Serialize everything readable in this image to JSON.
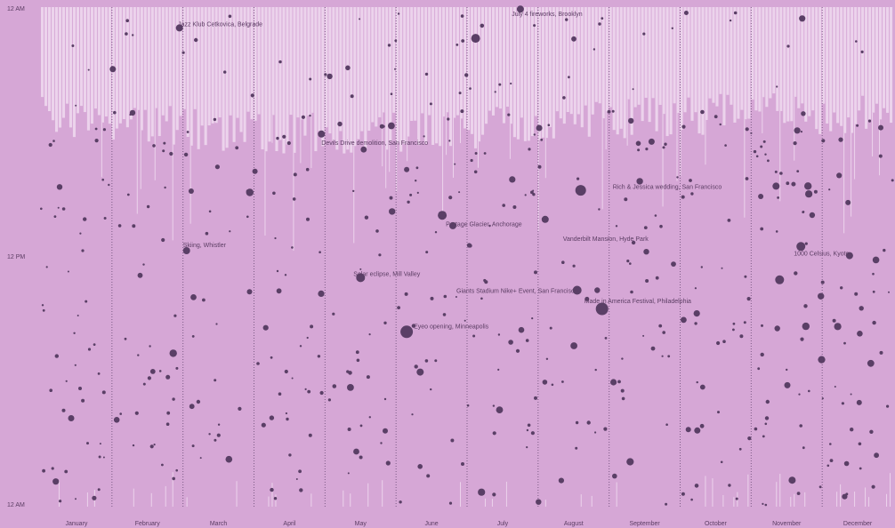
{
  "chart_data": {
    "type": "scatter",
    "title": "",
    "xlabel": "",
    "ylabel": "",
    "y_ticks": [
      "12 AM",
      "12 PM",
      "12 AM"
    ],
    "x_ticks": [
      "January",
      "February",
      "March",
      "April",
      "May",
      "June",
      "July",
      "August",
      "September",
      "October",
      "November",
      "December"
    ],
    "x_range_months": [
      0,
      12
    ],
    "y_range_hours": [
      0,
      24
    ],
    "grid": "vertical dotted month separators",
    "colors": {
      "background": "#d6a7d6",
      "night_band": "#ecd3ec",
      "dot": "#5a3f66",
      "separator": "#7d5c86",
      "text": "#5b3d63"
    },
    "annotations": [
      {
        "label": "Jazz Klub Cetkovica, Belgrade",
        "month": 1.93,
        "hour": 0.8
      },
      {
        "label": "July 4 fireworks, Brooklyn",
        "month": 6.63,
        "hour": 0.3
      },
      {
        "label": "Devils Drive demolition, San Francisco",
        "month": 3.95,
        "hour": 6.5
      },
      {
        "label": "Rich & Jessica wedding, San Francisco",
        "month": 8.05,
        "hour": 8.6
      },
      {
        "label": "Portage Glacier, Anchorage",
        "month": 5.7,
        "hour": 10.4
      },
      {
        "label": "Vanderbilt Mansion, Hyde Park",
        "month": 7.35,
        "hour": 11.1
      },
      {
        "label": "Skiing, Whistler",
        "month": 2.0,
        "hour": 11.4
      },
      {
        "label": "1000 Celsius, Kyoto",
        "month": 10.6,
        "hour": 11.8
      },
      {
        "label": "Solar eclipse, Mill Valley",
        "month": 4.4,
        "hour": 12.8
      },
      {
        "label": "Giants Stadium Nike+ Event, San Francisco",
        "month": 5.85,
        "hour": 13.6
      },
      {
        "label": "Made in America Festival, Philadelphia",
        "month": 7.65,
        "hour": 14.1
      },
      {
        "label": "Eyeo opening, Minneapolis",
        "month": 5.25,
        "hour": 15.3
      }
    ],
    "note_markers": "light bars show nighttime hours; dots show photos taken at a time of day",
    "highlight_points": [
      {
        "month": 1.95,
        "hour": 1.0,
        "size": 4
      },
      {
        "month": 6.75,
        "hour": 0.1,
        "size": 4
      },
      {
        "month": 6.12,
        "hour": 1.5,
        "size": 5
      },
      {
        "month": 3.95,
        "hour": 6.1,
        "size": 4
      },
      {
        "month": 7.6,
        "hour": 8.8,
        "size": 6
      },
      {
        "month": 5.65,
        "hour": 10.0,
        "size": 5
      },
      {
        "month": 7.1,
        "hour": 10.2,
        "size": 4
      },
      {
        "month": 2.05,
        "hour": 11.7,
        "size": 4
      },
      {
        "month": 10.7,
        "hour": 11.5,
        "size": 5
      },
      {
        "month": 4.5,
        "hour": 13.0,
        "size": 5
      },
      {
        "month": 7.55,
        "hour": 13.6,
        "size": 5
      },
      {
        "month": 5.15,
        "hour": 15.6,
        "size": 7
      },
      {
        "month": 7.9,
        "hour": 14.5,
        "size": 7
      },
      {
        "month": 10.4,
        "hour": 13.1,
        "size": 5
      },
      {
        "month": 10.35,
        "hour": 8.6,
        "size": 4
      },
      {
        "month": 5.8,
        "hour": 10.5,
        "size": 4
      }
    ]
  }
}
